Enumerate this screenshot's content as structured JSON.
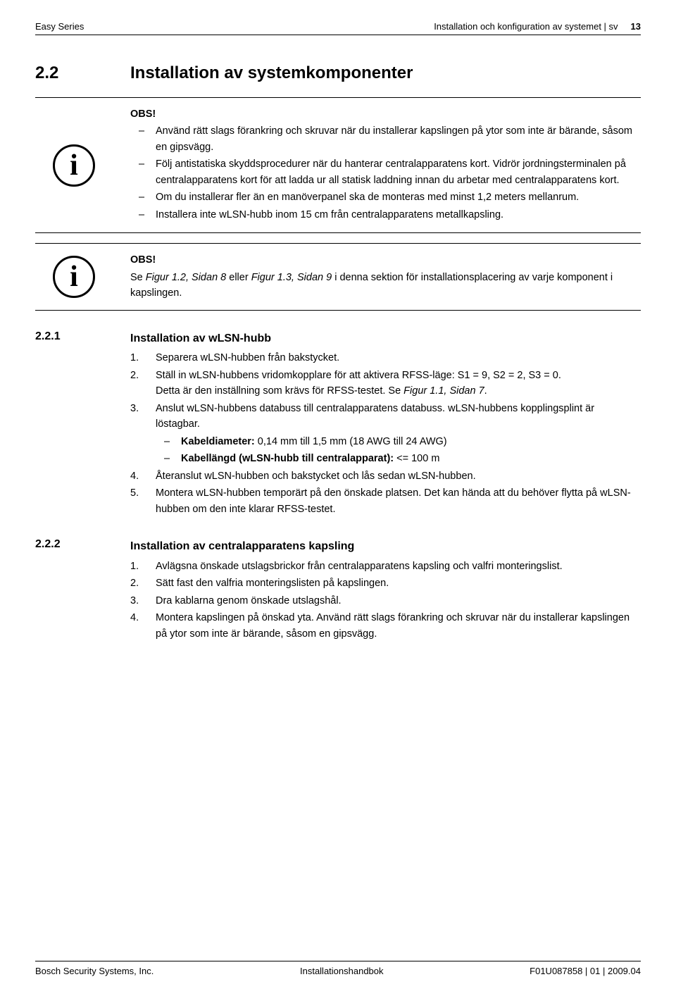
{
  "header": {
    "left": "Easy Series",
    "right_text": "Installation och konfiguration av systemet | sv",
    "page_number": "13"
  },
  "section": {
    "number": "2.2",
    "title": "Installation av systemkomponenter"
  },
  "notice1": {
    "label": "OBS!",
    "items": [
      "Använd rätt slags förankring och skruvar när du installerar kapslingen på ytor som inte är bärande, såsom en gipsvägg.",
      "Följ antistatiska skyddsprocedurer när du hanterar centralapparatens kort. Vidrör jordningsterminalen på centralapparatens kort för att ladda ur all statisk laddning innan du arbetar med centralapparatens kort.",
      "Om du installerar fler än en manöverpanel ska de monteras med minst 1,2 meters mellanrum.",
      "Installera inte wLSN-hubb inom 15 cm från centralapparatens metallkapsling."
    ]
  },
  "notice2": {
    "label": "OBS!",
    "text_prefix": "Se ",
    "fig1": "Figur 1.2, Sidan 8",
    "text_mid": " eller ",
    "fig2": "Figur 1.3, Sidan 9",
    "text_suffix": " i denna sektion för installationsplacering av varje komponent i kapslingen."
  },
  "sub1": {
    "number": "2.2.1",
    "title": "Installation av wLSN-hubb",
    "items": {
      "i1": {
        "num": "1.",
        "text": "Separera wLSN-hubben från bakstycket."
      },
      "i2": {
        "num": "2.",
        "line1": "Ställ in wLSN-hubbens vridomkopplare för att aktivera RFSS-läge: S1 = 9, S2 = 2, S3 = 0.",
        "line2_prefix": "Detta är den inställning som krävs för RFSS-testet. Se ",
        "line2_fig": "Figur 1.1, Sidan 7",
        "line2_suffix": "."
      },
      "i3": {
        "num": "3.",
        "line1": "Anslut wLSN-hubbens databuss till centralapparatens databuss. wLSN-hubbens kopplingsplint är löstagbar.",
        "sub": {
          "s1_bold": "Kabeldiameter:",
          "s1_rest": " 0,14 mm till 1,5 mm (18 AWG till 24 AWG)",
          "s2_bold": "Kabellängd (wLSN-hubb till centralapparat):",
          "s2_rest": " <= 100 m"
        }
      },
      "i4": {
        "num": "4.",
        "text": "Återanslut wLSN-hubben och bakstycket och lås sedan wLSN-hubben."
      },
      "i5": {
        "num": "5.",
        "text": "Montera wLSN-hubben temporärt på den önskade platsen. Det kan hända att du behöver flytta på wLSN-hubben om den inte klarar RFSS-testet."
      }
    }
  },
  "sub2": {
    "number": "2.2.2",
    "title": "Installation av centralapparatens kapsling",
    "items": {
      "i1": {
        "num": "1.",
        "text": "Avlägsna önskade utslagsbrickor från centralapparatens kapsling och valfri monteringslist."
      },
      "i2": {
        "num": "2.",
        "text": "Sätt fast den valfria monteringslisten på kapslingen."
      },
      "i3": {
        "num": "3.",
        "text": "Dra kablarna genom önskade utslagshål."
      },
      "i4": {
        "num": "4.",
        "text": "Montera kapslingen på önskad yta. Använd rätt slags förankring och skruvar när du installerar kapslingen på ytor som inte är bärande, såsom en gipsvägg."
      }
    }
  },
  "footer": {
    "left": "Bosch Security Systems, Inc.",
    "center": "Installationshandbok",
    "right": "F01U087858 | 01 | 2009.04"
  }
}
